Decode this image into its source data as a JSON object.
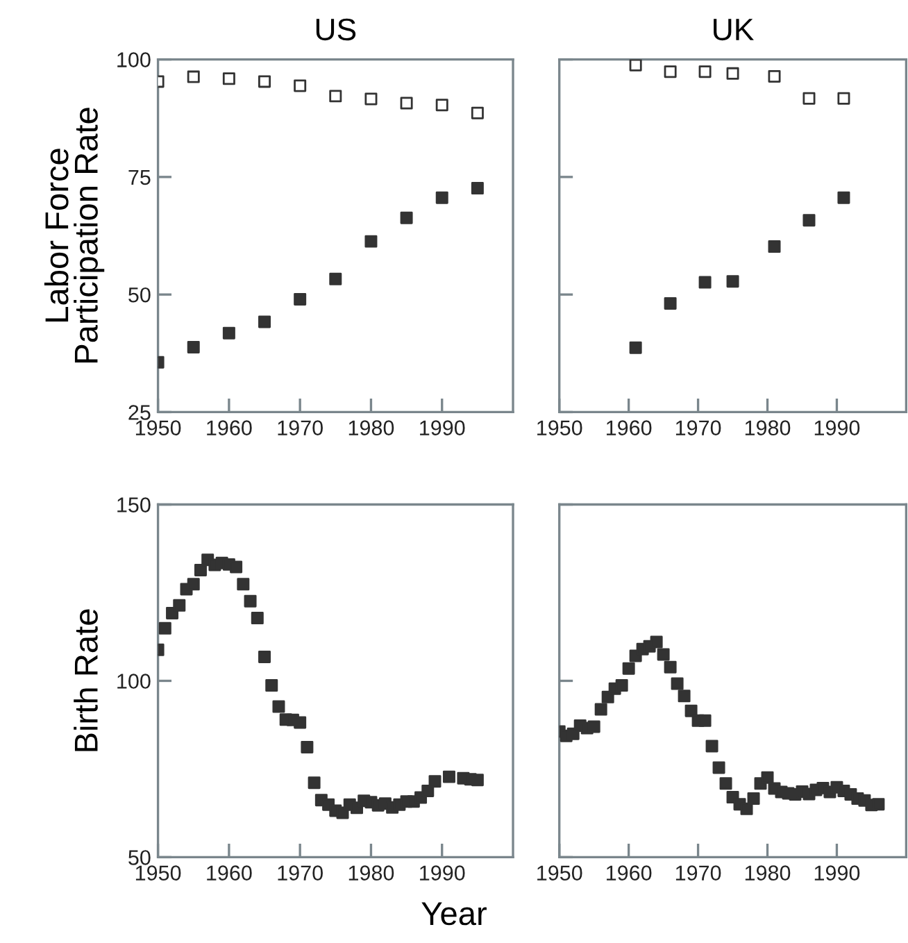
{
  "chart_data": [
    {
      "type": "scatter",
      "title": "US",
      "ylabel": "Labor Force\nParticipation Rate",
      "marker": "square",
      "grid": false,
      "xlim": [
        1950,
        2000
      ],
      "xticks": [
        1950,
        1960,
        1970,
        1980,
        1990
      ],
      "ylim": [
        25,
        100
      ],
      "yticks": [
        25,
        50,
        75,
        100
      ],
      "series": [
        {
          "color": "#ffffff",
          "x": [
            1950,
            1955,
            1960,
            1965,
            1970,
            1975,
            1980,
            1985,
            1990,
            1995
          ],
          "values": [
            95.3,
            96.3,
            95.9,
            95.3,
            94.4,
            92.2,
            91.6,
            90.7,
            90.3,
            88.6
          ]
        },
        {
          "color": "#333333",
          "x": [
            1950,
            1955,
            1960,
            1965,
            1970,
            1975,
            1980,
            1985,
            1990,
            1995
          ],
          "values": [
            35.6,
            38.8,
            41.8,
            44.2,
            49,
            53.3,
            61.3,
            66.3,
            70.6,
            72.6
          ]
        }
      ]
    },
    {
      "type": "scatter",
      "title": "UK",
      "marker": "square",
      "grid": false,
      "tick_labels": "x",
      "xlim": [
        1950,
        2000
      ],
      "xticks": [
        1950,
        1960,
        1970,
        1980,
        1990
      ],
      "ylim": [
        25,
        100
      ],
      "yticks": [
        {
          "value": 25,
          "label": null
        },
        {
          "value": 50,
          "label": null
        },
        {
          "value": 75,
          "label": null
        },
        {
          "value": 100,
          "label": null
        }
      ],
      "series": [
        {
          "color": "#ffffff",
          "x": [
            1961,
            1966,
            1971,
            1975,
            1981,
            1986,
            1991
          ],
          "values": [
            98.8,
            97.4,
            97.4,
            97,
            96.4,
            91.7,
            91.7
          ]
        },
        {
          "color": "#333333",
          "x": [
            1961,
            1966,
            1971,
            1975,
            1981,
            1986,
            1991
          ],
          "values": [
            38.7,
            48.1,
            52.6,
            52.8,
            60.2,
            65.8,
            70.6
          ]
        }
      ]
    },
    {
      "type": "scatter",
      "ylabel": "Birth Rate",
      "xlabel": "Year",
      "marker": "square",
      "grid": false,
      "xlim": [
        1950,
        2000
      ],
      "xticks": [
        1950,
        1960,
        1970,
        1980,
        1990
      ],
      "ylim": [
        50,
        150
      ],
      "yticks": [
        50,
        100,
        150
      ],
      "series": [
        {
          "color": "#333333",
          "x": [
            1950,
            1951,
            1952,
            1953,
            1954,
            1955,
            1956,
            1957,
            1958,
            1959,
            1960,
            1961,
            1962,
            1963,
            1964,
            1965,
            1966,
            1967,
            1968,
            1969,
            1970,
            1971,
            1972,
            1973,
            1974,
            1975,
            1976,
            1977,
            1978,
            1979,
            1980,
            1981,
            1982,
            1983,
            1984,
            1985,
            1986,
            1987,
            1988,
            1989,
            1991,
            1993,
            1994,
            1995
          ],
          "values": [
            108.8,
            114.9,
            119.2,
            121.4,
            126,
            127.4,
            131.4,
            134.3,
            132.9,
            133.4,
            133,
            132.3,
            127.4,
            122.6,
            117.8,
            106.8,
            98.7,
            92.7,
            89,
            88.9,
            88.2,
            81.2,
            71.1,
            66.2,
            64.9,
            63.2,
            62.6,
            64.9,
            64,
            66,
            65.6,
            64.7,
            65.2,
            64.1,
            64.9,
            65.8,
            65.8,
            66.9,
            68.8,
            71.5,
            72.8,
            72.4,
            72.1,
            71.9
          ]
        }
      ]
    },
    {
      "type": "scatter",
      "marker": "square",
      "grid": false,
      "tick_labels": "x",
      "xlim": [
        1950,
        2000
      ],
      "xticks": [
        1950,
        1960,
        1970,
        1980,
        1990
      ],
      "ylim": [
        50,
        150
      ],
      "yticks": [
        {
          "value": 50,
          "label": null
        },
        {
          "value": 100,
          "label": null
        },
        {
          "value": 150,
          "label": null
        }
      ],
      "series": [
        {
          "color": "#333333",
          "x": [
            1950,
            1951,
            1952,
            1953,
            1954,
            1955,
            1956,
            1957,
            1958,
            1959,
            1960,
            1961,
            1962,
            1963,
            1964,
            1965,
            1966,
            1967,
            1968,
            1969,
            1970,
            1971,
            1972,
            1973,
            1974,
            1975,
            1976,
            1977,
            1978,
            1979,
            1980,
            1981,
            1982,
            1983,
            1984,
            1985,
            1986,
            1987,
            1988,
            1989,
            1990,
            1991,
            1992,
            1993,
            1994,
            1995,
            1996
          ],
          "values": [
            85.6,
            84.4,
            85,
            87.3,
            86.6,
            87,
            91.9,
            95.4,
            97.8,
            98.7,
            103.5,
            107.1,
            109,
            109.8,
            111,
            107.5,
            103.9,
            99.2,
            95.7,
            91.5,
            88.7,
            88.7,
            81.5,
            75.4,
            70.9,
            67,
            65,
            63.7,
            66.6,
            70.9,
            72.6,
            69.5,
            68.5,
            68.1,
            67.8,
            68.6,
            67.9,
            69.1,
            69.6,
            68.5,
            69.8,
            68.8,
            67.8,
            66.6,
            66.1,
            64.8,
            65
          ]
        }
      ]
    }
  ]
}
